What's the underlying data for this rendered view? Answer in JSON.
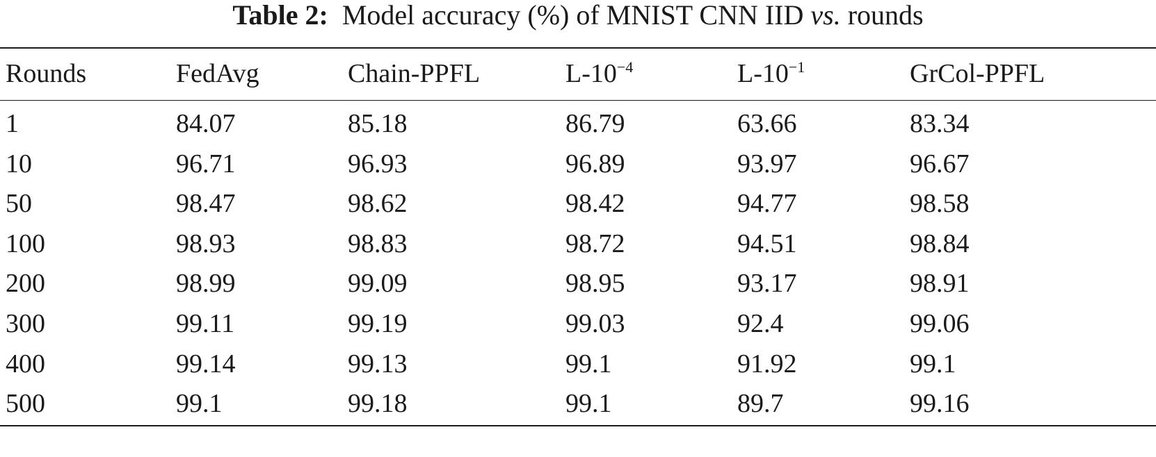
{
  "caption": {
    "label": "Table 2:",
    "text": "Model accuracy (%) of MNIST CNN IID",
    "italic": "vs.",
    "tail": "rounds"
  },
  "table": {
    "header": [
      {
        "text": "Rounds"
      },
      {
        "text": "FedAvg"
      },
      {
        "text": "Chain-PPFL"
      },
      {
        "text": "L-10",
        "sup": "−4"
      },
      {
        "text": "L-10",
        "sup": "−1"
      },
      {
        "text": "GrCol-PPFL"
      }
    ],
    "rows": [
      [
        "1",
        "84.07",
        "85.18",
        "86.79",
        "63.66",
        "83.34"
      ],
      [
        "10",
        "96.71",
        "96.93",
        "96.89",
        "93.97",
        "96.67"
      ],
      [
        "50",
        "98.47",
        "98.62",
        "98.42",
        "94.77",
        "98.58"
      ],
      [
        "100",
        "98.93",
        "98.83",
        "98.72",
        "94.51",
        "98.84"
      ],
      [
        "200",
        "98.99",
        "99.09",
        "98.95",
        "93.17",
        "98.91"
      ],
      [
        "300",
        "99.11",
        "99.19",
        "99.03",
        "92.4",
        "99.06"
      ],
      [
        "400",
        "99.14",
        "99.13",
        "99.1",
        "91.92",
        "99.1"
      ],
      [
        "500",
        "99.1",
        "99.18",
        "99.1",
        "89.7",
        "99.16"
      ]
    ]
  }
}
